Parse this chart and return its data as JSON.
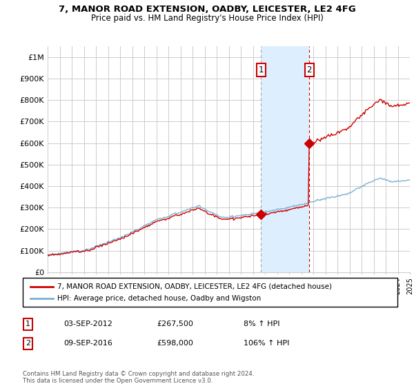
{
  "title": "7, MANOR ROAD EXTENSION, OADBY, LEICESTER, LE2 4FG",
  "subtitle": "Price paid vs. HM Land Registry's House Price Index (HPI)",
  "ylim": [
    0,
    1050000
  ],
  "xlim_year": [
    1995,
    2025
  ],
  "yticks": [
    0,
    100000,
    200000,
    300000,
    400000,
    500000,
    600000,
    700000,
    800000,
    900000,
    1000000
  ],
  "ytick_labels": [
    "£0",
    "£100K",
    "£200K",
    "£300K",
    "£400K",
    "£500K",
    "£600K",
    "£700K",
    "£800K",
    "£900K",
    "£1M"
  ],
  "background_color": "#ffffff",
  "grid_color": "#cccccc",
  "hpi_color": "#7ab0d4",
  "price_color": "#cc0000",
  "sale1_year": 2012.67,
  "sale1_price": 267500,
  "sale1_label": "1",
  "sale2_year": 2016.67,
  "sale2_price": 598000,
  "sale2_label": "2",
  "shade_color": "#ddeeff",
  "legend_line1": "7, MANOR ROAD EXTENSION, OADBY, LEICESTER, LE2 4FG (detached house)",
  "legend_line2": "HPI: Average price, detached house, Oadby and Wigston",
  "footer": "Contains HM Land Registry data © Crown copyright and database right 2024.\nThis data is licensed under the Open Government Licence v3.0.",
  "table_row1": [
    "1",
    "03-SEP-2012",
    "£267,500",
    "8% ↑ HPI"
  ],
  "table_row2": [
    "2",
    "09-SEP-2016",
    "£598,000",
    "106% ↑ HPI"
  ]
}
